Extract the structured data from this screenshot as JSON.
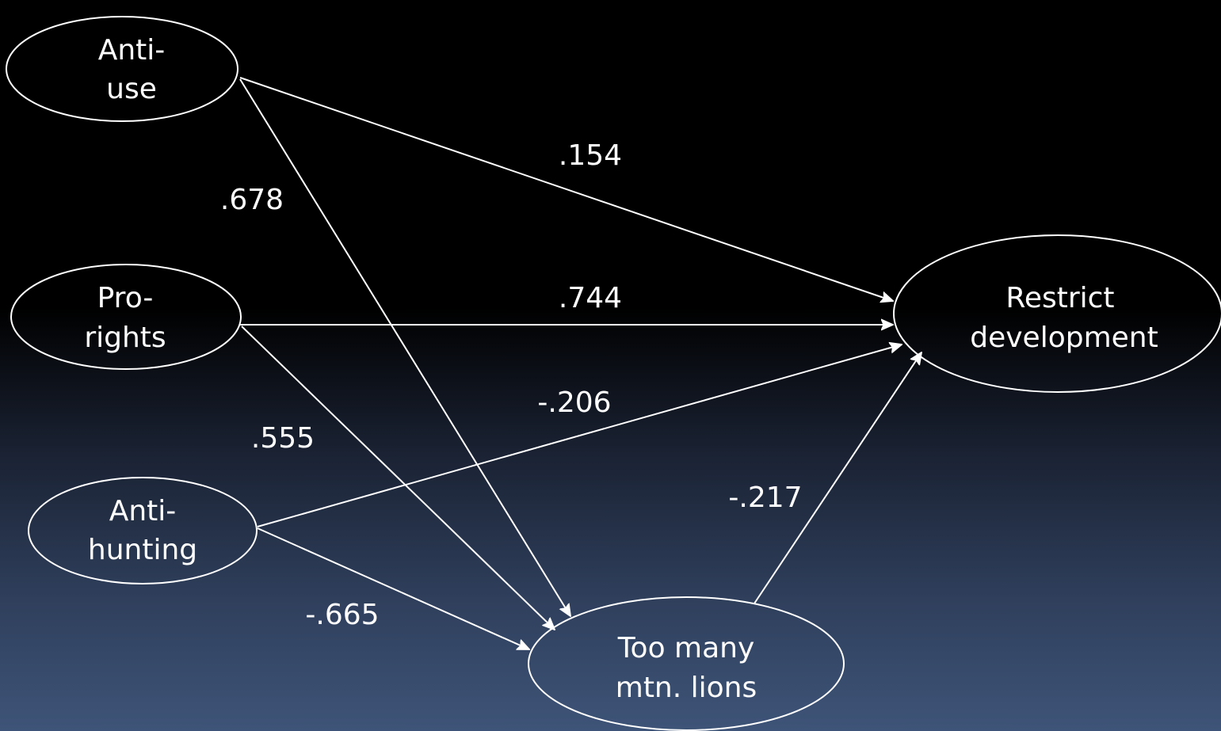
{
  "nodes": {
    "anti_use": {
      "line1": "Anti-",
      "line2": "use"
    },
    "pro_rights": {
      "line1": "Pro-",
      "line2": "rights"
    },
    "anti_hunting": {
      "line1": "Anti-",
      "line2": "hunting"
    },
    "restrict_development": {
      "line1": "Restrict",
      "line2": "development"
    },
    "too_many_lions": {
      "line1": "Too many",
      "line2": "mtn. lions"
    }
  },
  "edges": {
    "anti_use_to_restrict": {
      "coefficient": ".154"
    },
    "anti_use_to_lions": {
      "coefficient": ".678"
    },
    "pro_rights_to_restrict": {
      "coefficient": ".744"
    },
    "pro_rights_to_lions": {
      "coefficient": ".555"
    },
    "anti_hunting_to_restrict": {
      "coefficient": "-.206"
    },
    "anti_hunting_to_lions": {
      "coefficient": "-.665"
    },
    "lions_to_restrict": {
      "coefficient": "-.217"
    }
  },
  "colors": {
    "stroke": "#ffffff",
    "text": "#ffffff",
    "background_top": "#000000",
    "background_bottom": "#3e5478"
  }
}
